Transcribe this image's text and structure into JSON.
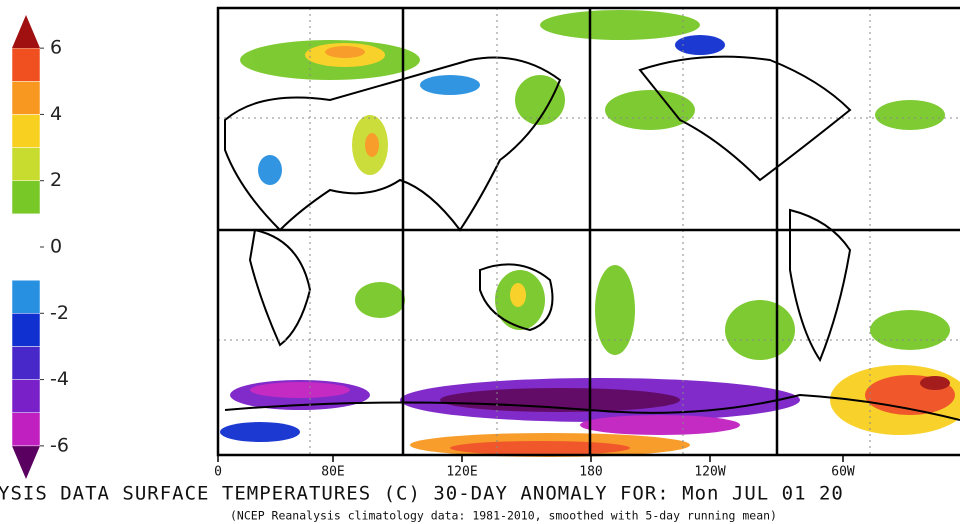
{
  "colorbar": {
    "ylim": [
      -7,
      7
    ],
    "ticks": [
      6,
      4,
      2,
      0,
      -2,
      -4,
      -6
    ],
    "colors": [
      "#5a0060",
      "#c020c0",
      "#7a20c8",
      "#4828c8",
      "#1030d0",
      "#2890e0",
      "#ffffff",
      "#ffffff",
      "#78c828",
      "#c8dc30",
      "#f8d020",
      "#f89820",
      "#f05020",
      "#a01010"
    ]
  },
  "map": {
    "x_labels": [
      "0",
      "80E",
      "120E",
      "180",
      "120W",
      "60W"
    ]
  },
  "title": "YSIS DATA SURFACE TEMPERATURES (C) 30-DAY ANOMALY FOR: Mon JUL 01 20",
  "subtitle": "(NCEP Reanalysis climatology data: 1981-2010, smoothed with 5-day running mean)"
}
